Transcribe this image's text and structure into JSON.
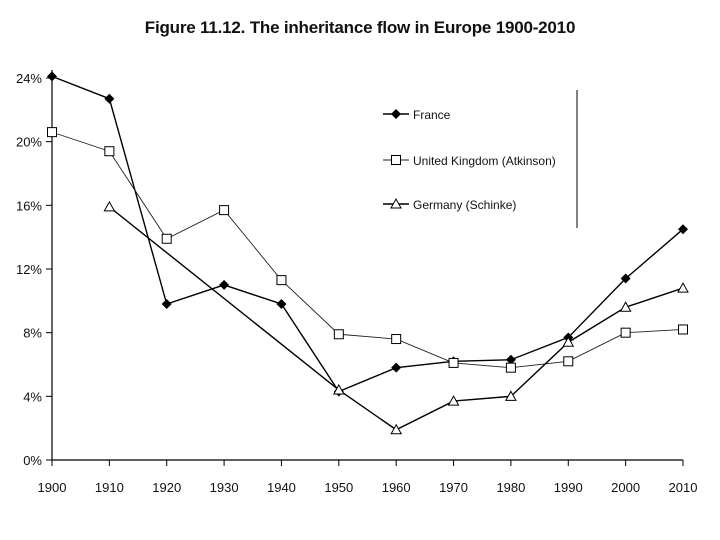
{
  "chart_data": {
    "type": "line",
    "title": "Figure 11.12. The inheritance flow in Europe 1900-2010",
    "xlabel": "",
    "ylabel": "",
    "x": [
      1900,
      1910,
      1920,
      1930,
      1940,
      1950,
      1960,
      1970,
      1980,
      1990,
      2000,
      2010
    ],
    "x_tick_labels": [
      "1900",
      "1910",
      "1920",
      "1930",
      "1940",
      "1950",
      "1960",
      "1970",
      "1980",
      "1990",
      "2000",
      "2010"
    ],
    "ylim": [
      0,
      24
    ],
    "y_ticks": [
      0,
      4,
      8,
      12,
      16,
      20,
      24
    ],
    "y_tick_labels": [
      "0%",
      "4%",
      "8%",
      "12%",
      "16%",
      "20%",
      "24%"
    ],
    "grid": false,
    "legend_position": "top-right",
    "series": [
      {
        "name": "France",
        "marker": "diamond",
        "line": "solid",
        "points": [
          [
            1900,
            24.1
          ],
          [
            1910,
            22.7
          ],
          [
            1920,
            9.8
          ],
          [
            1930,
            11.0
          ],
          [
            1940,
            9.8
          ],
          [
            1950,
            4.3
          ],
          [
            1960,
            5.8
          ],
          [
            1970,
            6.2
          ],
          [
            1980,
            6.3
          ],
          [
            1990,
            7.7
          ],
          [
            2000,
            11.4
          ],
          [
            2010,
            14.5
          ]
        ]
      },
      {
        "name": "United Kingdom (Atkinson)",
        "marker": "square",
        "line": "thin",
        "points": [
          [
            1900,
            20.6
          ],
          [
            1910,
            19.4
          ],
          [
            1920,
            13.9
          ],
          [
            1930,
            15.7
          ],
          [
            1940,
            11.3
          ],
          [
            1950,
            7.9
          ],
          [
            1960,
            7.6
          ],
          [
            1970,
            6.1
          ],
          [
            1980,
            5.8
          ],
          [
            1990,
            6.2
          ],
          [
            2000,
            8.0
          ],
          [
            2010,
            8.2
          ]
        ]
      },
      {
        "name": "Germany (Schinke)",
        "marker": "triangle",
        "line": "solid",
        "points": [
          [
            1910,
            15.9
          ],
          [
            1950,
            4.4
          ],
          [
            1960,
            1.9
          ],
          [
            1970,
            3.7
          ],
          [
            1980,
            4.0
          ],
          [
            1990,
            7.4
          ],
          [
            2000,
            9.6
          ],
          [
            2010,
            10.8
          ]
        ]
      }
    ]
  }
}
